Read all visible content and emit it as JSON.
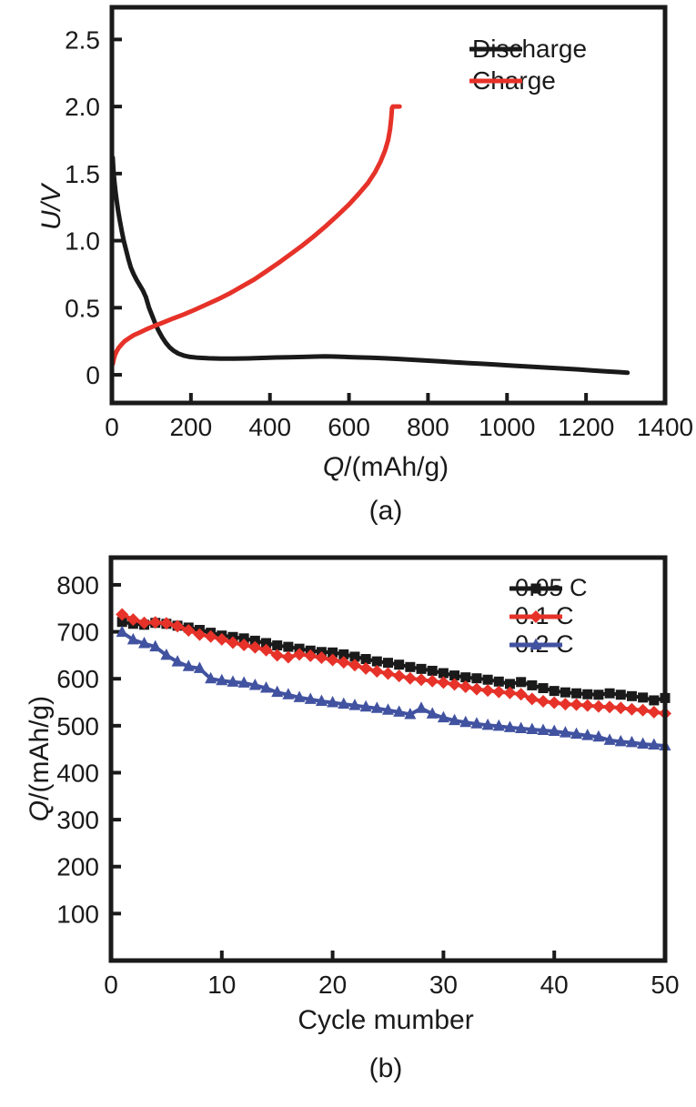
{
  "figure": {
    "caption_a": "(a)",
    "caption_b": "(b)"
  },
  "colors": {
    "axis": "#1a1a1a",
    "black_series": "#1a1a1a",
    "red_series": "#e63229",
    "blue_series": "#4152a0"
  },
  "chart_data": [
    {
      "id": "a",
      "type": "line",
      "caption": "(a)",
      "xlabel_var": "Q",
      "xlabel_rest": "/(mAh/g)",
      "ylabel_var": "U",
      "ylabel_rest": "/V",
      "xlim": [
        0,
        1400
      ],
      "ylim": [
        -0.21,
        2.74
      ],
      "xtick_values": [
        0,
        200,
        400,
        600,
        800,
        1000,
        1200,
        1400
      ],
      "xtick_labels": [
        "0",
        "200",
        "400",
        "600",
        "800",
        "1000",
        "1200",
        "1400"
      ],
      "ytick_values": [
        0,
        0.5,
        1.0,
        1.5,
        2.0,
        2.5
      ],
      "ytick_labels": [
        "0",
        "0.5",
        "1.0",
        "1.5",
        "2.0",
        "2.5"
      ],
      "grid": false,
      "legend_position": "top-right",
      "series": [
        {
          "name": "Discharge",
          "color": "#1a1a1a",
          "marker": "none",
          "points": [
            [
              2,
              1.62
            ],
            [
              4,
              1.52
            ],
            [
              6,
              1.45
            ],
            [
              9,
              1.37
            ],
            [
              12,
              1.3
            ],
            [
              16,
              1.22
            ],
            [
              20,
              1.15
            ],
            [
              25,
              1.07
            ],
            [
              30,
              1.0
            ],
            [
              36,
              0.93
            ],
            [
              42,
              0.86
            ],
            [
              48,
              0.8
            ],
            [
              55,
              0.75
            ],
            [
              62,
              0.71
            ],
            [
              70,
              0.67
            ],
            [
              78,
              0.63
            ],
            [
              86,
              0.58
            ],
            [
              94,
              0.5
            ],
            [
              102,
              0.44
            ],
            [
              110,
              0.38
            ],
            [
              118,
              0.33
            ],
            [
              127,
              0.28
            ],
            [
              136,
              0.24
            ],
            [
              146,
              0.205
            ],
            [
              156,
              0.18
            ],
            [
              168,
              0.158
            ],
            [
              182,
              0.143
            ],
            [
              198,
              0.133
            ],
            [
              218,
              0.127
            ],
            [
              245,
              0.123
            ],
            [
              275,
              0.121
            ],
            [
              310,
              0.121
            ],
            [
              345,
              0.122
            ],
            [
              380,
              0.126
            ],
            [
              415,
              0.129
            ],
            [
              450,
              0.131
            ],
            [
              485,
              0.133
            ],
            [
              515,
              0.136
            ],
            [
              540,
              0.138
            ],
            [
              565,
              0.136
            ],
            [
              590,
              0.133
            ],
            [
              620,
              0.13
            ],
            [
              655,
              0.127
            ],
            [
              690,
              0.123
            ],
            [
              725,
              0.118
            ],
            [
              760,
              0.112
            ],
            [
              795,
              0.106
            ],
            [
              830,
              0.1
            ],
            [
              865,
              0.094
            ],
            [
              900,
              0.088
            ],
            [
              935,
              0.082
            ],
            [
              970,
              0.076
            ],
            [
              1005,
              0.07
            ],
            [
              1040,
              0.064
            ],
            [
              1075,
              0.058
            ],
            [
              1110,
              0.052
            ],
            [
              1145,
              0.046
            ],
            [
              1180,
              0.04
            ],
            [
              1215,
              0.033
            ],
            [
              1250,
              0.026
            ],
            [
              1285,
              0.02
            ],
            [
              1305,
              0.016
            ]
          ]
        },
        {
          "name": "Charge",
          "color": "#e63229",
          "marker": "none",
          "points": [
            [
              2,
              0.08
            ],
            [
              5,
              0.12
            ],
            [
              8,
              0.15
            ],
            [
              12,
              0.175
            ],
            [
              17,
              0.2
            ],
            [
              24,
              0.225
            ],
            [
              32,
              0.25
            ],
            [
              42,
              0.27
            ],
            [
              55,
              0.295
            ],
            [
              70,
              0.315
            ],
            [
              88,
              0.34
            ],
            [
              108,
              0.365
            ],
            [
              130,
              0.39
            ],
            [
              155,
              0.42
            ],
            [
              182,
              0.45
            ],
            [
              210,
              0.485
            ],
            [
              240,
              0.525
            ],
            [
              270,
              0.565
            ],
            [
              300,
              0.61
            ],
            [
              330,
              0.66
            ],
            [
              360,
              0.71
            ],
            [
              390,
              0.77
            ],
            [
              420,
              0.83
            ],
            [
              450,
              0.895
            ],
            [
              480,
              0.96
            ],
            [
              510,
              1.03
            ],
            [
              540,
              1.105
            ],
            [
              570,
              1.185
            ],
            [
              600,
              1.27
            ],
            [
              625,
              1.35
            ],
            [
              648,
              1.43
            ],
            [
              666,
              1.51
            ],
            [
              680,
              1.59
            ],
            [
              691,
              1.67
            ],
            [
              699,
              1.75
            ],
            [
              704,
              1.83
            ],
            [
              707,
              1.91
            ],
            [
              709,
              1.99
            ],
            [
              711,
              2.0
            ],
            [
              728,
              2.0
            ]
          ]
        }
      ]
    },
    {
      "id": "b",
      "type": "line",
      "caption": "(b)",
      "xlabel": "Cycle mumber",
      "ylabel_var": "Q",
      "ylabel_rest": "/(mAh/g)",
      "xlim": [
        0,
        50
      ],
      "ylim": [
        0,
        858
      ],
      "xtick_values": [
        0,
        10,
        20,
        30,
        40,
        50
      ],
      "xtick_labels": [
        "0",
        "10",
        "20",
        "30",
        "40",
        "50"
      ],
      "ytick_values": [
        100,
        200,
        300,
        400,
        500,
        600,
        700,
        800
      ],
      "ytick_labels": [
        "100",
        "200",
        "300",
        "400",
        "500",
        "600",
        "700",
        "800"
      ],
      "grid": false,
      "legend_position": "top-right",
      "x_start": 1,
      "series": [
        {
          "name": "0.05 C",
          "color": "#1a1a1a",
          "marker": "square",
          "values": [
            721,
            717,
            715,
            719,
            717,
            713,
            709,
            704,
            698,
            692,
            689,
            686,
            681,
            676,
            671,
            668,
            664,
            660,
            657,
            656,
            652,
            647,
            642,
            637,
            634,
            630,
            625,
            621,
            617,
            612,
            607,
            603,
            601,
            598,
            594,
            589,
            593,
            586,
            580,
            574,
            571,
            569,
            567,
            566,
            569,
            566,
            563,
            560,
            554,
            559
          ]
        },
        {
          "name": "0.1 C",
          "color": "#e63229",
          "marker": "diamond",
          "values": [
            737,
            726,
            719,
            720,
            718,
            712,
            703,
            694,
            690,
            684,
            677,
            672,
            667,
            661,
            650,
            646,
            652,
            649,
            645,
            640,
            635,
            629,
            622,
            616,
            611,
            606,
            601,
            598,
            595,
            592,
            588,
            583,
            578,
            575,
            572,
            570,
            567,
            557,
            552,
            549,
            546,
            545,
            543,
            541,
            540,
            538,
            535,
            533,
            529,
            526
          ]
        },
        {
          "name": "0.2 C",
          "color": "#4152a0",
          "marker": "triangle",
          "values": [
            699,
            683,
            675,
            668,
            650,
            636,
            626,
            622,
            600,
            596,
            593,
            591,
            586,
            580,
            571,
            566,
            560,
            556,
            552,
            549,
            546,
            543,
            540,
            537,
            533,
            529,
            524,
            537,
            525,
            517,
            511,
            507,
            504,
            501,
            499,
            496,
            494,
            492,
            490,
            488,
            485,
            482,
            479,
            476,
            469,
            466,
            464,
            461,
            459,
            457
          ]
        }
      ]
    }
  ]
}
